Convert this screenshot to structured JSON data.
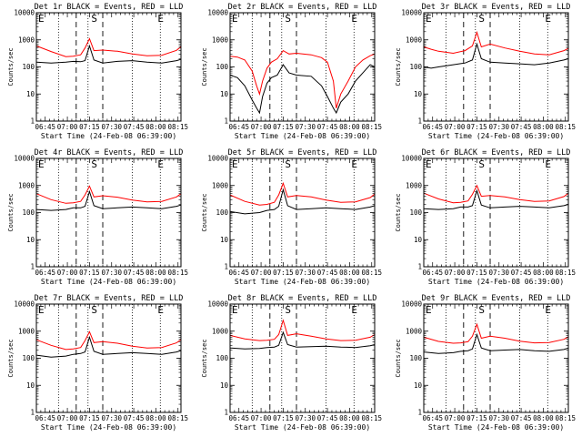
{
  "figure": {
    "subtitle_suffix": " BLACK = Events, RED = LLD",
    "xlabel": "Start Time (24-Feb-08 06:39:00)",
    "ylabel": "Counts/sec",
    "x_tick_labels": [
      "06:45",
      "07:00",
      "07:15",
      "07:30",
      "07:45",
      "08:00",
      "08:15"
    ],
    "y_tick_labels": [
      "1",
      "10",
      "100",
      "1000",
      "10000"
    ],
    "colors": {
      "events": "#000000",
      "lld": "#ff0000",
      "axes": "#000000",
      "background": "#ffffff"
    }
  },
  "chart_data": [
    {
      "type": "line",
      "title": "Det 1r BLACK = Events, RED = LLD",
      "det": "Det 1r",
      "xlabel": "Start Time (24-Feb-08 06:39:00)",
      "ylabel": "Counts/sec",
      "yscale": "log",
      "ylim": [
        1,
        10000
      ],
      "xlim_minutes_after_start": [
        0,
        98
      ],
      "markers": [
        {
          "label": "E",
          "minute": 0
        },
        {
          "label": "S",
          "minute": 36
        },
        {
          "label": "E",
          "minute": 81
        }
      ],
      "lines": {
        "dotted_minutes": [
          15,
          35,
          65,
          84
        ],
        "dashed_minutes": [
          27,
          45
        ]
      },
      "x_minutes": [
        0,
        10,
        20,
        25,
        30,
        33,
        36,
        39,
        45,
        55,
        65,
        75,
        85,
        95,
        98
      ],
      "series": [
        {
          "name": "Events",
          "color": "#000000",
          "values": [
            150,
            140,
            150,
            160,
            155,
            170,
            600,
            180,
            140,
            160,
            170,
            150,
            140,
            170,
            190
          ]
        },
        {
          "name": "LLD",
          "color": "#ff0000",
          "values": [
            600,
            370,
            240,
            250,
            280,
            500,
            1100,
            400,
            420,
            380,
            300,
            260,
            270,
            410,
            560
          ]
        }
      ]
    },
    {
      "type": "line",
      "title": "Det 2r BLACK = Events, RED = LLD",
      "det": "Det 2r",
      "xlabel": "Start Time (24-Feb-08 06:39:00)",
      "ylabel": "Counts/sec",
      "yscale": "log",
      "ylim": [
        1,
        10000
      ],
      "xlim_minutes_after_start": [
        0,
        98
      ],
      "markers": [
        {
          "label": "E",
          "minute": 0
        },
        {
          "label": "S",
          "minute": 36
        },
        {
          "label": "E",
          "minute": 81
        }
      ],
      "lines": {
        "dotted_minutes": [
          15,
          35,
          65,
          84
        ],
        "dashed_minutes": [
          27,
          45
        ]
      },
      "x_minutes": [
        0,
        5,
        10,
        15,
        18,
        20,
        22,
        25,
        28,
        32,
        36,
        40,
        45,
        55,
        62,
        66,
        70,
        72,
        75,
        80,
        85,
        90,
        95,
        98
      ],
      "series": [
        {
          "name": "Events",
          "color": "#000000",
          "values": [
            50,
            40,
            20,
            6,
            3,
            2,
            8,
            25,
            40,
            50,
            120,
            60,
            50,
            45,
            20,
            8,
            3,
            2,
            5,
            10,
            30,
            60,
            120,
            100
          ]
        },
        {
          "name": "LLD",
          "color": "#ff0000",
          "values": [
            250,
            230,
            180,
            70,
            20,
            10,
            30,
            90,
            150,
            200,
            400,
            300,
            320,
            280,
            220,
            150,
            30,
            3,
            10,
            30,
            100,
            180,
            260,
            300
          ]
        }
      ]
    },
    {
      "type": "line",
      "title": "Det 3r BLACK = Events, RED = LLD",
      "det": "Det 3r",
      "xlabel": "Start Time (24-Feb-08 06:39:00)",
      "ylabel": "Counts/sec",
      "yscale": "log",
      "ylim": [
        1,
        10000
      ],
      "xlim_minutes_after_start": [
        0,
        98
      ],
      "markers": [
        {
          "label": "E",
          "minute": 0
        },
        {
          "label": "S",
          "minute": 36
        },
        {
          "label": "E",
          "minute": 81
        }
      ],
      "lines": {
        "dotted_minutes": [
          15,
          35,
          65,
          84
        ],
        "dashed_minutes": [
          27,
          45
        ]
      },
      "x_minutes": [
        0,
        5,
        10,
        20,
        28,
        33,
        36,
        39,
        45,
        55,
        65,
        75,
        85,
        95,
        98
      ],
      "series": [
        {
          "name": "Events",
          "color": "#000000",
          "values": [
            100,
            90,
            100,
            120,
            140,
            180,
            700,
            200,
            150,
            140,
            130,
            120,
            140,
            180,
            200
          ]
        },
        {
          "name": "LLD",
          "color": "#ff0000",
          "values": [
            550,
            450,
            380,
            320,
            400,
            600,
            1900,
            550,
            700,
            500,
            380,
            300,
            280,
            400,
            480
          ]
        }
      ]
    },
    {
      "type": "line",
      "title": "Det 4r BLACK = Events, RED = LLD",
      "det": "Det 4r",
      "xlabel": "Start Time (24-Feb-08 06:39:00)",
      "ylabel": "Counts/sec",
      "yscale": "log",
      "ylim": [
        1,
        10000
      ],
      "xlim_minutes_after_start": [
        0,
        98
      ],
      "markers": [
        {
          "label": "E",
          "minute": 0
        },
        {
          "label": "S",
          "minute": 36
        },
        {
          "label": "E",
          "minute": 81
        }
      ],
      "lines": {
        "dotted_minutes": [
          15,
          35,
          65,
          84
        ],
        "dashed_minutes": [
          27,
          45
        ]
      },
      "x_minutes": [
        0,
        10,
        20,
        25,
        30,
        33,
        36,
        39,
        45,
        55,
        65,
        75,
        85,
        95,
        98
      ],
      "series": [
        {
          "name": "Events",
          "color": "#000000",
          "values": [
            130,
            120,
            130,
            150,
            150,
            170,
            600,
            180,
            140,
            150,
            160,
            150,
            140,
            170,
            190
          ]
        },
        {
          "name": "LLD",
          "color": "#ff0000",
          "values": [
            500,
            300,
            220,
            230,
            260,
            450,
            950,
            380,
            420,
            370,
            290,
            250,
            260,
            380,
            500
          ]
        }
      ]
    },
    {
      "type": "line",
      "title": "Det 5r BLACK = Events, RED = LLD",
      "det": "Det 5r",
      "xlabel": "Start Time (24-Feb-08 06:39:00)",
      "ylabel": "Counts/sec",
      "yscale": "log",
      "ylim": [
        1,
        10000
      ],
      "xlim_minutes_after_start": [
        0,
        98
      ],
      "markers": [
        {
          "label": "E",
          "minute": 0
        },
        {
          "label": "S",
          "minute": 36
        },
        {
          "label": "E",
          "minute": 81
        }
      ],
      "lines": {
        "dotted_minutes": [
          15,
          35,
          65,
          84
        ],
        "dashed_minutes": [
          27,
          45
        ]
      },
      "x_minutes": [
        0,
        10,
        20,
        25,
        30,
        33,
        36,
        39,
        45,
        55,
        65,
        75,
        85,
        95,
        98
      ],
      "series": [
        {
          "name": "Events",
          "color": "#000000",
          "values": [
            110,
            90,
            100,
            120,
            130,
            170,
            700,
            180,
            130,
            140,
            150,
            140,
            130,
            160,
            180
          ]
        },
        {
          "name": "LLD",
          "color": "#ff0000",
          "values": [
            450,
            260,
            190,
            200,
            240,
            450,
            1200,
            380,
            430,
            380,
            290,
            240,
            250,
            360,
            480
          ]
        }
      ]
    },
    {
      "type": "line",
      "title": "Det 6r BLACK = Events, RED = LLD",
      "det": "Det 6r",
      "xlabel": "Start Time (24-Feb-08 06:39:00)",
      "ylabel": "Counts/sec",
      "yscale": "log",
      "ylim": [
        1,
        10000
      ],
      "xlim_minutes_after_start": [
        0,
        98
      ],
      "markers": [
        {
          "label": "E",
          "minute": 0
        },
        {
          "label": "S",
          "minute": 36
        },
        {
          "label": "E",
          "minute": 81
        }
      ],
      "lines": {
        "dotted_minutes": [
          15,
          35,
          65,
          84
        ],
        "dashed_minutes": [
          27,
          45
        ]
      },
      "x_minutes": [
        0,
        10,
        20,
        25,
        30,
        33,
        36,
        39,
        45,
        55,
        65,
        75,
        85,
        95,
        98
      ],
      "series": [
        {
          "name": "Events",
          "color": "#000000",
          "values": [
            140,
            130,
            140,
            160,
            160,
            180,
            650,
            190,
            150,
            160,
            170,
            160,
            150,
            180,
            200
          ]
        },
        {
          "name": "LLD",
          "color": "#ff0000",
          "values": [
            520,
            320,
            230,
            240,
            270,
            470,
            1000,
            400,
            430,
            380,
            300,
            260,
            270,
            390,
            520
          ]
        }
      ]
    },
    {
      "type": "line",
      "title": "Det 7r BLACK = Events, RED = LLD",
      "det": "Det 7r",
      "xlabel": "Start Time (24-Feb-08 06:39:00)",
      "ylabel": "Counts/sec",
      "yscale": "log",
      "ylim": [
        1,
        10000
      ],
      "xlim_minutes_after_start": [
        0,
        98
      ],
      "markers": [
        {
          "label": "E",
          "minute": 0
        },
        {
          "label": "S",
          "minute": 36
        },
        {
          "label": "E",
          "minute": 81
        }
      ],
      "lines": {
        "dotted_minutes": [
          15,
          35,
          65,
          84
        ],
        "dashed_minutes": [
          27,
          45
        ]
      },
      "x_minutes": [
        0,
        10,
        20,
        25,
        30,
        33,
        36,
        39,
        45,
        55,
        65,
        75,
        85,
        95,
        98
      ],
      "series": [
        {
          "name": "Events",
          "color": "#000000",
          "values": [
            130,
            110,
            120,
            140,
            150,
            170,
            600,
            180,
            140,
            150,
            160,
            150,
            140,
            170,
            190
          ]
        },
        {
          "name": "LLD",
          "color": "#ff0000",
          "values": [
            480,
            300,
            210,
            220,
            250,
            450,
            950,
            380,
            410,
            360,
            280,
            240,
            250,
            370,
            490
          ]
        }
      ]
    },
    {
      "type": "line",
      "title": "Det 8r BLACK = Events, RED = LLD",
      "det": "Det 8r",
      "xlabel": "Start Time (24-Feb-08 06:39:00)",
      "ylabel": "Counts/sec",
      "yscale": "log",
      "ylim": [
        1,
        10000
      ],
      "xlim_minutes_after_start": [
        0,
        98
      ],
      "markers": [
        {
          "label": "E",
          "minute": 0
        },
        {
          "label": "S",
          "minute": 36
        },
        {
          "label": "E",
          "minute": 81
        }
      ],
      "lines": {
        "dotted_minutes": [
          15,
          35,
          65,
          84
        ],
        "dashed_minutes": [
          27,
          45
        ]
      },
      "x_minutes": [
        0,
        10,
        20,
        25,
        30,
        33,
        36,
        39,
        45,
        55,
        65,
        75,
        85,
        95,
        98
      ],
      "series": [
        {
          "name": "Events",
          "color": "#000000",
          "values": [
            240,
            220,
            230,
            250,
            260,
            300,
            900,
            320,
            260,
            270,
            280,
            260,
            250,
            290,
            320
          ]
        },
        {
          "name": "LLD",
          "color": "#ff0000",
          "values": [
            700,
            520,
            450,
            460,
            500,
            750,
            2500,
            700,
            800,
            650,
            520,
            450,
            460,
            600,
            750
          ]
        }
      ]
    },
    {
      "type": "line",
      "title": "Det 9r BLACK = Events, RED = LLD",
      "det": "Det 9r",
      "xlabel": "Start Time (24-Feb-08 06:39:00)",
      "ylabel": "Counts/sec",
      "yscale": "log",
      "ylim": [
        1,
        10000
      ],
      "xlim_minutes_after_start": [
        0,
        98
      ],
      "markers": [
        {
          "label": "E",
          "minute": 0
        },
        {
          "label": "S",
          "minute": 36
        },
        {
          "label": "E",
          "minute": 81
        }
      ],
      "lines": {
        "dotted_minutes": [
          15,
          35,
          65,
          84
        ],
        "dashed_minutes": [
          27,
          45
        ]
      },
      "x_minutes": [
        0,
        10,
        20,
        25,
        30,
        33,
        36,
        39,
        45,
        55,
        65,
        75,
        85,
        95,
        98
      ],
      "series": [
        {
          "name": "Events",
          "color": "#000000",
          "values": [
            170,
            150,
            160,
            180,
            190,
            220,
            750,
            240,
            190,
            200,
            210,
            190,
            180,
            210,
            240
          ]
        },
        {
          "name": "LLD",
          "color": "#ff0000",
          "values": [
            600,
            420,
            360,
            370,
            410,
            650,
            1800,
            550,
            650,
            550,
            430,
            370,
            380,
            500,
            620
          ]
        }
      ]
    }
  ]
}
